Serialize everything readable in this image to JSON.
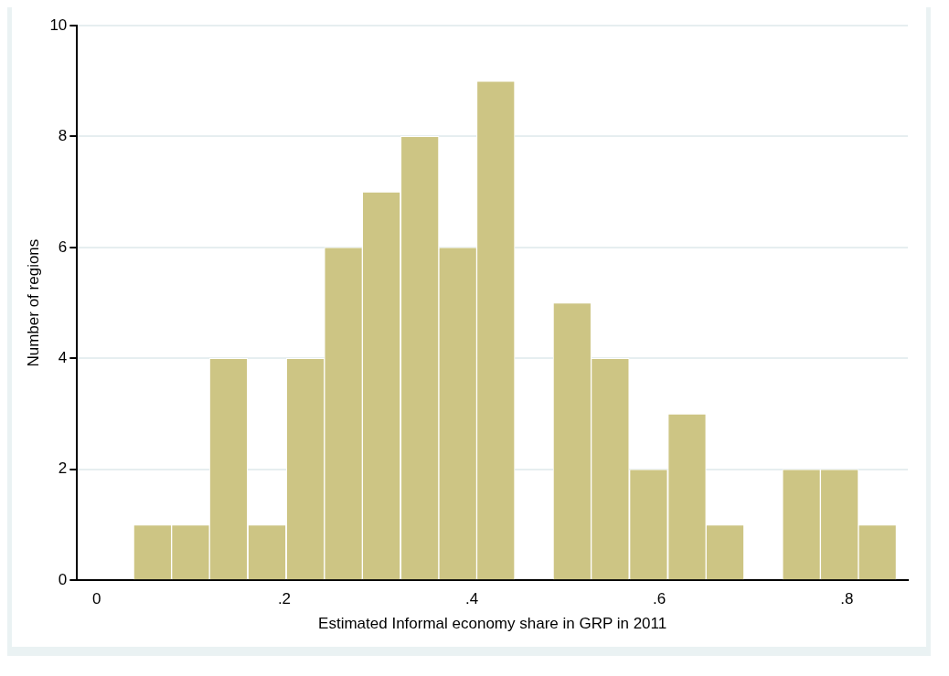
{
  "chart_data": {
    "type": "histogram",
    "xlabel": "Estimated Informal economy share in GRP in 2011",
    "ylabel": "Number of regions",
    "bins": [
      0.039,
      0.08,
      0.12,
      0.161,
      0.202,
      0.243,
      0.283,
      0.324,
      0.365,
      0.405,
      0.446,
      0.487,
      0.527,
      0.568,
      0.609,
      0.65,
      0.69,
      0.731,
      0.772,
      0.812,
      0.853
    ],
    "values": [
      1,
      1,
      4,
      1,
      4,
      6,
      7,
      8,
      6,
      9,
      0,
      5,
      4,
      2,
      3,
      1,
      0,
      2,
      2,
      1
    ],
    "color": "#cdc584",
    "xlim": [
      -0.021,
      0.865
    ],
    "xticks": [
      0,
      {
        "value": 0.2,
        "label": ".2"
      },
      {
        "value": 0.4,
        "label": ".4"
      },
      {
        "value": 0.6,
        "label": ".6"
      },
      {
        "value": 0.8,
        "label": ".8"
      }
    ],
    "ylim": [
      0,
      10
    ],
    "yticks": [
      0,
      2,
      4,
      6,
      8,
      10
    ],
    "grid": "y"
  }
}
